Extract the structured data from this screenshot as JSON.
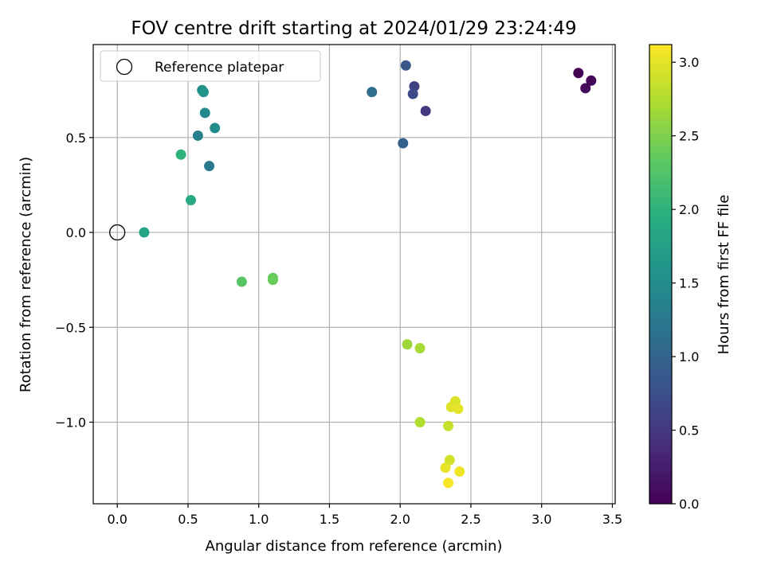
{
  "chart_data": {
    "type": "scatter",
    "title": "FOV centre drift starting at 2024/01/29 23:24:49",
    "xlabel": "Angular distance from reference (arcmin)",
    "ylabel": "Rotation from reference (arcmin)",
    "xlim": [
      -0.17,
      3.52
    ],
    "ylim": [
      -1.43,
      0.99
    ],
    "xticks": [
      0.0,
      0.5,
      1.0,
      1.5,
      2.0,
      2.5,
      3.0,
      3.5
    ],
    "xtick_labels": [
      "0.0",
      "0.5",
      "1.0",
      "1.5",
      "2.0",
      "2.5",
      "3.0",
      "3.5"
    ],
    "yticks": [
      0.5,
      0.0,
      -0.5,
      -1.0
    ],
    "ytick_labels": [
      "0.5",
      "0.0",
      "−0.5",
      "−1.0"
    ],
    "grid": true,
    "legend": {
      "placement": "top-left",
      "entries": [
        {
          "label": "Reference platepar",
          "marker": "open-circle"
        }
      ]
    },
    "reference_point": {
      "x": 0.0,
      "y": 0.0
    },
    "colorbar": {
      "label": "Hours from first FF file",
      "colormap": "viridis",
      "range": [
        0.0,
        3.12
      ],
      "ticks": [
        0.0,
        0.5,
        1.0,
        1.5,
        2.0,
        2.5,
        3.0
      ],
      "tick_labels": [
        "0.0",
        "0.5",
        "1.0",
        "1.5",
        "2.0",
        "2.5",
        "3.0"
      ]
    },
    "points": [
      {
        "x": 3.26,
        "y": 0.84,
        "hours": 0.0
      },
      {
        "x": 3.35,
        "y": 0.8,
        "hours": 0.05
      },
      {
        "x": 3.31,
        "y": 0.76,
        "hours": 0.1
      },
      {
        "x": 2.18,
        "y": 0.64,
        "hours": 0.5
      },
      {
        "x": 2.1,
        "y": 0.77,
        "hours": 0.6
      },
      {
        "x": 2.09,
        "y": 0.73,
        "hours": 0.7
      },
      {
        "x": 2.04,
        "y": 0.88,
        "hours": 0.85
      },
      {
        "x": 2.02,
        "y": 0.47,
        "hours": 0.95
      },
      {
        "x": 1.8,
        "y": 0.74,
        "hours": 1.1
      },
      {
        "x": 0.65,
        "y": 0.35,
        "hours": 1.25
      },
      {
        "x": 0.57,
        "y": 0.51,
        "hours": 1.35
      },
      {
        "x": 0.62,
        "y": 0.63,
        "hours": 1.45
      },
      {
        "x": 0.69,
        "y": 0.55,
        "hours": 1.5
      },
      {
        "x": 0.6,
        "y": 0.75,
        "hours": 1.55
      },
      {
        "x": 0.61,
        "y": 0.74,
        "hours": 1.6
      },
      {
        "x": 0.19,
        "y": 0.0,
        "hours": 1.8
      },
      {
        "x": 0.52,
        "y": 0.17,
        "hours": 1.9
      },
      {
        "x": 0.45,
        "y": 0.41,
        "hours": 2.0
      },
      {
        "x": 0.88,
        "y": -0.26,
        "hours": 2.3
      },
      {
        "x": 1.1,
        "y": -0.24,
        "hours": 2.35
      },
      {
        "x": 1.1,
        "y": -0.25,
        "hours": 2.4
      },
      {
        "x": 2.05,
        "y": -0.59,
        "hours": 2.65
      },
      {
        "x": 2.14,
        "y": -0.61,
        "hours": 2.7
      },
      {
        "x": 2.14,
        "y": -1.0,
        "hours": 2.75
      },
      {
        "x": 2.34,
        "y": -1.02,
        "hours": 2.85
      },
      {
        "x": 2.39,
        "y": -0.89,
        "hours": 2.95
      },
      {
        "x": 2.36,
        "y": -0.92,
        "hours": 2.97
      },
      {
        "x": 2.41,
        "y": -0.93,
        "hours": 3.0
      },
      {
        "x": 2.35,
        "y": -1.2,
        "hours": 2.92
      },
      {
        "x": 2.32,
        "y": -1.24,
        "hours": 3.02
      },
      {
        "x": 2.42,
        "y": -1.26,
        "hours": 3.05
      },
      {
        "x": 2.34,
        "y": -1.32,
        "hours": 3.1
      }
    ]
  }
}
